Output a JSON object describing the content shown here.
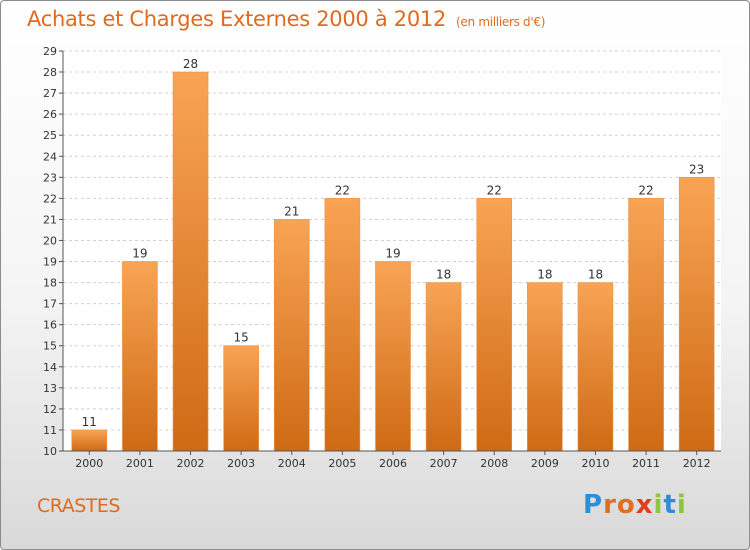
{
  "title": "Achats et Charges Externes 2000 à 2012",
  "title_unit": "(en milliers d'€)",
  "commune": "CRASTES",
  "logo": {
    "text": "Proxiti",
    "letter_colors": [
      "#2a8fd6",
      "#e0701e",
      "#e0701e",
      "#e03c1e",
      "#8cc63e",
      "#2a8fd6",
      "#8cc63e"
    ]
  },
  "colors": {
    "accent": "#e06a1e",
    "bar_top": "#f8a455",
    "bar_bottom": "#cf6a14",
    "grid": "#d0d0d0"
  },
  "chart_data": {
    "type": "bar",
    "categories": [
      "2000",
      "2001",
      "2002",
      "2003",
      "2004",
      "2005",
      "2006",
      "2007",
      "2008",
      "2009",
      "2010",
      "2011",
      "2012"
    ],
    "values": [
      11,
      19,
      28,
      15,
      21,
      22,
      19,
      18,
      22,
      18,
      18,
      22,
      23
    ],
    "ylim": [
      10,
      29
    ],
    "yticks": [
      10,
      11,
      12,
      13,
      14,
      15,
      16,
      17,
      18,
      19,
      20,
      21,
      22,
      23,
      24,
      25,
      26,
      27,
      28,
      29
    ],
    "grid": true,
    "data_labels": true
  }
}
